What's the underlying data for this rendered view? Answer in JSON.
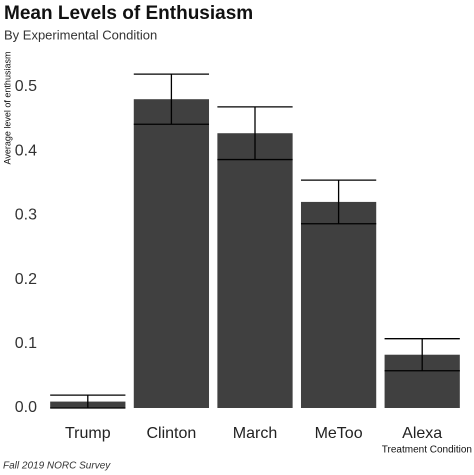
{
  "chart_data": {
    "type": "bar",
    "title": "Mean Levels of Enthusiasm",
    "subtitle": "By Experimental Condition",
    "y_label": "Average level of enthusiasm",
    "x_label": "Treatment Condition",
    "caption": "Fall 2019 NORC Survey",
    "categories": [
      "Trump",
      "Clinton",
      "March",
      "MeToo",
      "Alexa"
    ],
    "values": [
      0.01,
      0.481,
      0.428,
      0.321,
      0.083
    ],
    "errors": [
      0.01,
      0.039,
      0.041,
      0.034,
      0.025
    ],
    "color": "#404040",
    "ylim": [
      0,
      0.5
    ],
    "yticks": [
      {
        "value": 0,
        "label": "0.0"
      },
      0.1,
      0.2,
      0.3,
      0.4,
      0.5
    ]
  }
}
